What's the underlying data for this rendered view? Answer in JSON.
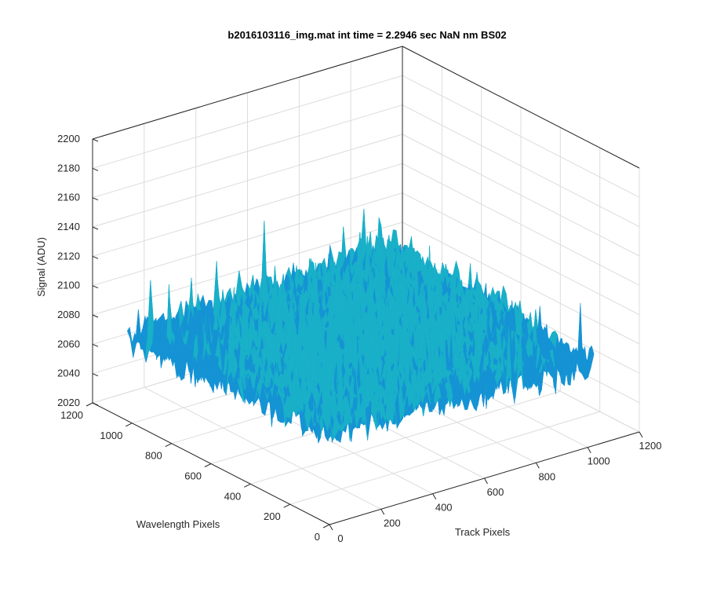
{
  "chart_data": {
    "type": "surface",
    "title": "b2016103116_img.mat int time = 2.2946 sec  NaN nm BS02",
    "xlabel": "Track Pixels",
    "ylabel": "Wavelength Pixels",
    "zlabel": "Signal (ADU)",
    "xlim": [
      0,
      1200
    ],
    "ylim": [
      0,
      1200
    ],
    "zlim": [
      2020,
      2200
    ],
    "x_ticks": [
      "0",
      "200",
      "400",
      "600",
      "800",
      "1000",
      "1200"
    ],
    "y_ticks": [
      "0",
      "200",
      "400",
      "600",
      "800",
      "1000",
      "1200"
    ],
    "z_ticks": [
      "2020",
      "2040",
      "2060",
      "2080",
      "2100",
      "2120",
      "2140",
      "2160",
      "2180",
      "2200"
    ],
    "x_extent": [
      0,
      1024
    ],
    "y_extent": [
      0,
      1024
    ],
    "signal_mean": 2080,
    "signal_range": [
      2045,
      2160
    ],
    "grid": true,
    "colormap": [
      "#0a63c9",
      "#1593d4",
      "#19b0c8",
      "#2dbfa6",
      "#6cc77a",
      "#b0c64f"
    ]
  }
}
